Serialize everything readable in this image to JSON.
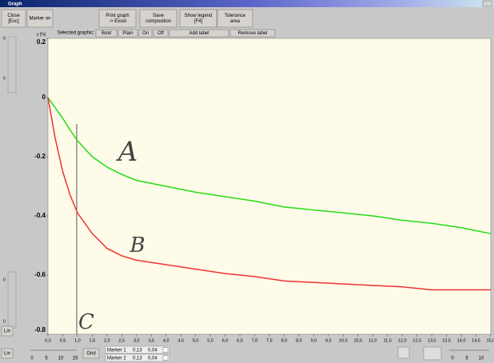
{
  "window": {
    "title": "Graph"
  },
  "toolbar": {
    "buttons": [
      [
        "Close",
        "[Esc]"
      ],
      [
        "Marker on"
      ],
      [
        "Print graph",
        "-> Excel"
      ],
      [
        "Save",
        "composition"
      ],
      [
        "Show legend",
        "[F4]"
      ],
      [
        "Tolerance",
        "area"
      ]
    ],
    "selected_label": "Selected graphic:",
    "selected_buttons": [
      "Bold",
      "Plain",
      "On",
      "Off",
      "Add label",
      "Remove label"
    ]
  },
  "chart_data": {
    "type": "line",
    "y_label": "y [%]",
    "xlim": [
      0,
      15
    ],
    "ylim": [
      -0.8,
      0.2
    ],
    "grid": false,
    "yticks": [
      0.2,
      0,
      -0.2,
      -0.4,
      -0.6,
      -0.8
    ],
    "xticks": [
      {
        "value": 0,
        "label": "0,0"
      },
      {
        "value": 0.5,
        "label": "0,5"
      },
      {
        "value": 1,
        "label": "1,0"
      },
      {
        "value": 1.5,
        "label": "1,5"
      },
      {
        "value": 2,
        "label": "2,0"
      },
      {
        "value": 2.5,
        "label": "2,5"
      },
      {
        "value": 3,
        "label": "3,0"
      },
      {
        "value": 3.5,
        "label": "3,5"
      },
      {
        "value": 4,
        "label": "4,0"
      },
      {
        "value": 4.5,
        "label": "4,5"
      },
      {
        "value": 5,
        "label": "5,0"
      },
      {
        "value": 5.5,
        "label": "5,5"
      },
      {
        "value": 6,
        "label": "6,0"
      },
      {
        "value": 6.5,
        "label": "6,5"
      },
      {
        "value": 7,
        "label": "7,0"
      },
      {
        "value": 7.5,
        "label": "7,5"
      },
      {
        "value": 8,
        "label": "8,0"
      },
      {
        "value": 8.5,
        "label": "8,5"
      },
      {
        "value": 9,
        "label": "9,0"
      },
      {
        "value": 9.5,
        "label": "9,5"
      },
      {
        "value": 10,
        "label": "10,0"
      },
      {
        "value": 10.5,
        "label": "10,5"
      },
      {
        "value": 11,
        "label": "11,0"
      },
      {
        "value": 11.5,
        "label": "11,5"
      },
      {
        "value": 12,
        "label": "12,0"
      },
      {
        "value": 12.5,
        "label": "12,5"
      },
      {
        "value": 13,
        "label": "13,0"
      },
      {
        "value": 13.5,
        "label": "13,5"
      },
      {
        "value": 14,
        "label": "14,0"
      },
      {
        "value": 14.5,
        "label": "14,5"
      },
      {
        "value": 15,
        "label": "15,0"
      }
    ],
    "x": [
      0,
      0.25,
      0.5,
      0.75,
      1,
      1.5,
      2,
      2.5,
      3,
      4,
      5,
      6,
      7,
      8,
      9,
      10,
      11,
      12,
      13,
      14,
      14.5,
      15
    ],
    "series": [
      {
        "color": "#22dd11",
        "values": [
          0,
          -0.035,
          -0.07,
          -0.11,
          -0.146,
          -0.2,
          -0.235,
          -0.26,
          -0.28,
          -0.3,
          -0.32,
          -0.335,
          -0.35,
          -0.37,
          -0.38,
          -0.39,
          -0.4,
          -0.415,
          -0.425,
          -0.44,
          -0.45,
          -0.46
        ]
      },
      {
        "color": "#ee3333",
        "values": [
          0,
          -0.14,
          -0.25,
          -0.33,
          -0.39,
          -0.46,
          -0.51,
          -0.535,
          -0.55,
          -0.565,
          -0.58,
          -0.595,
          -0.605,
          -0.62,
          -0.625,
          -0.63,
          -0.635,
          -0.64,
          -0.65,
          -0.65,
          -0.65,
          -0.65
        ]
      }
    ],
    "annotations": [
      "A",
      "B",
      "C"
    ],
    "marker_x": 1
  },
  "controls": {
    "scale_buttons": [
      "Lin",
      "Lin"
    ],
    "grid_button": "Grid",
    "left_slider_labels": [
      0,
      0,
      0,
      0
    ],
    "bottom_slider_ticks": [
      0,
      5,
      10,
      15
    ],
    "right_slider_ticks": [
      0,
      5,
      10
    ],
    "markers": [
      [
        "Marker 1",
        "0,13",
        "0,04"
      ],
      [
        "Marker 2",
        "0,13",
        "0,04"
      ]
    ]
  }
}
